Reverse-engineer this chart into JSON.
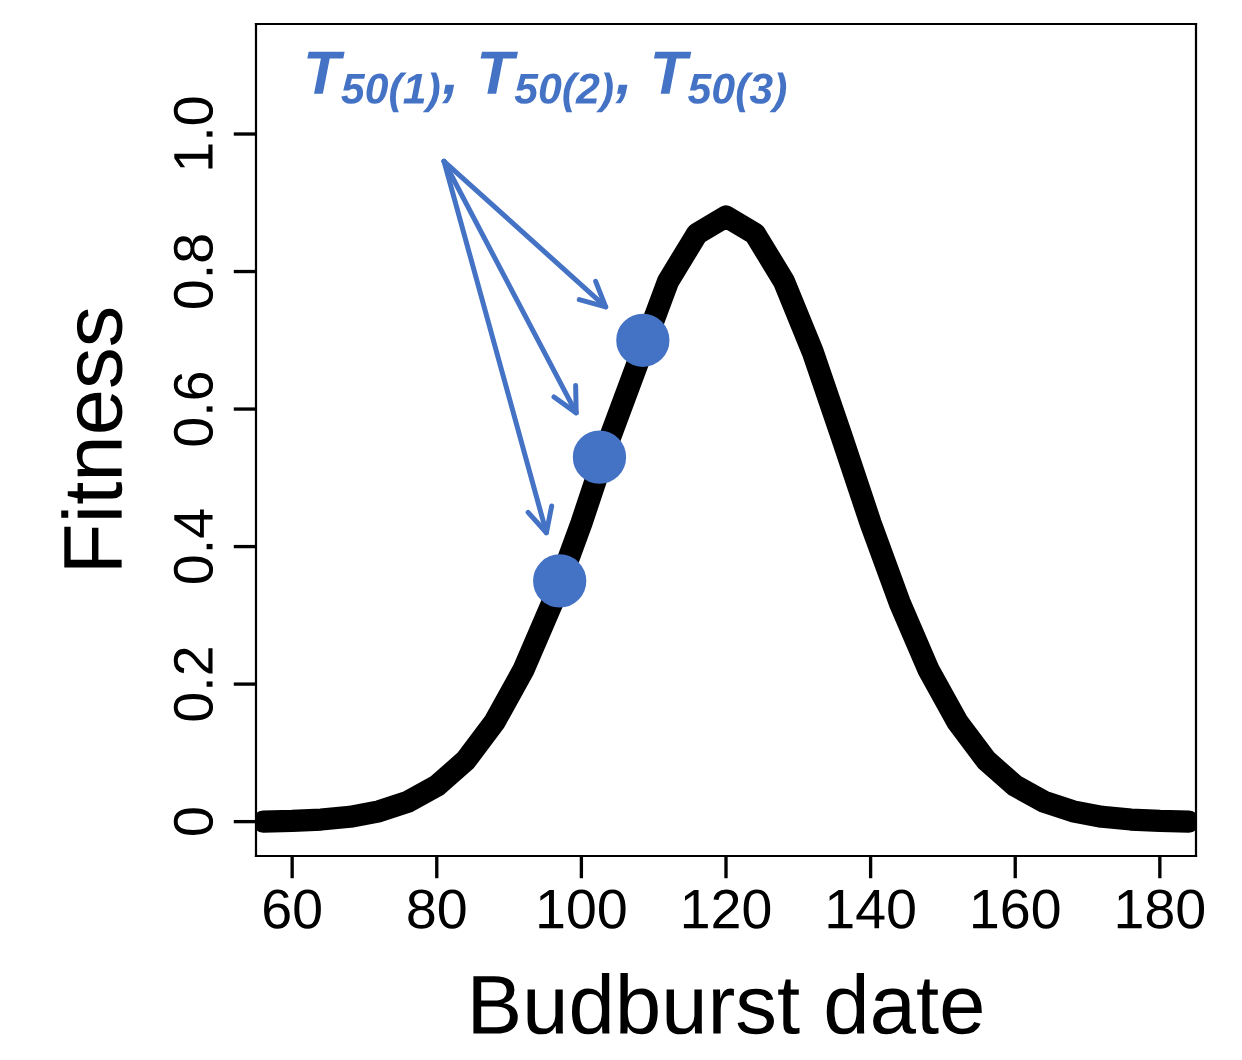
{
  "chart_data": {
    "type": "line",
    "xlabel": "Budburst date",
    "ylabel": "Fitness",
    "xlim": [
      55,
      185
    ],
    "xticks": [
      60,
      80,
      100,
      120,
      140,
      160,
      180
    ],
    "ylim": [
      -0.05,
      1.16
    ],
    "yticks": [
      0,
      {
        "value": 0.2,
        "label": "0.2"
      },
      {
        "value": 0.4,
        "label": "0.4"
      },
      {
        "value": 0.6,
        "label": "0.6"
      },
      {
        "value": 0.8,
        "label": "0.8"
      },
      {
        "value": 1.0,
        "label": "1.0"
      }
    ],
    "grid": false,
    "legend": false,
    "annotations": [
      "T$_{50(1)}$, T$_{50(2)}$, T$_{50(3)}$"
    ],
    "series": [
      {
        "color": "#000000",
        "x": [
          56,
          60,
          64,
          68,
          72,
          76,
          80,
          84,
          88,
          92,
          96,
          100,
          104,
          112,
          116,
          120,
          124,
          128,
          132,
          136,
          140,
          144,
          148,
          152,
          156,
          160,
          164,
          168,
          172,
          176,
          180,
          184
        ],
        "values": [
          0,
          0.001,
          0.003,
          0.007,
          0.015,
          0.029,
          0.052,
          0.089,
          0.145,
          0.221,
          0.319,
          0.434,
          0.56,
          0.786,
          0.855,
          0.88,
          0.855,
          0.786,
          0.683,
          0.56,
          0.434,
          0.319,
          0.221,
          0.145,
          0.089,
          0.052,
          0.029,
          0.015,
          0.007,
          0.003,
          0.001,
          0
        ]
      },
      {
        "type": "scatter",
        "color": "#4472c4",
        "marker": "circle",
        "x": [
          97,
          102.5,
          108.5
        ],
        "values": [
          0.35,
          0.53,
          0.7
        ]
      }
    ]
  }
}
